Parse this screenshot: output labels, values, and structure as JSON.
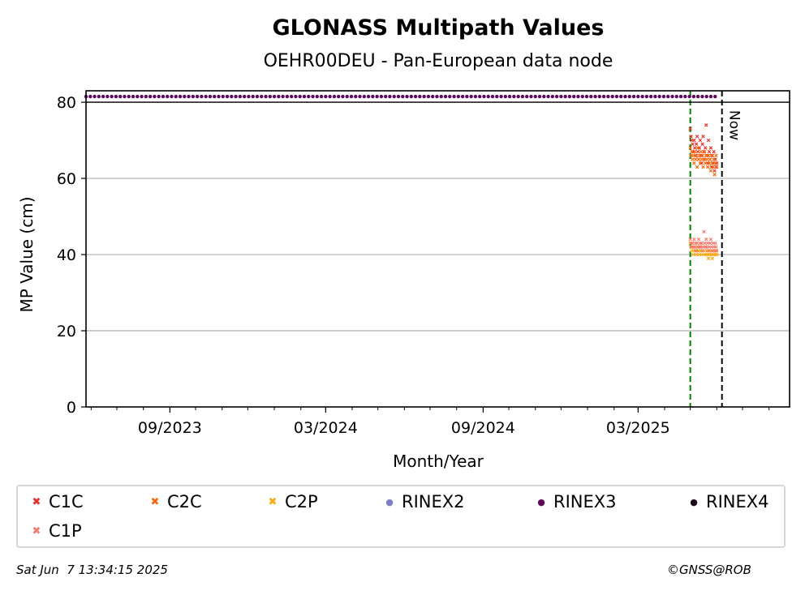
{
  "chart_data": {
    "type": "scatter",
    "title": "GLONASS Multipath Values",
    "subtitle": "OEHR00DEU - Pan-European data node",
    "xlabel": "Month/Year",
    "ylabel": "MP Value (cm)",
    "x_tick_labels": [
      "09/2023",
      "03/2024",
      "09/2024",
      "03/2025"
    ],
    "x_tick_dates": [
      "2023-09-01",
      "2024-03-01",
      "2024-09-01",
      "2025-03-01"
    ],
    "x_range": [
      "2023-05-26",
      "2025-08-25"
    ],
    "ylim": [
      0,
      83
    ],
    "y_ticks": [
      0,
      20,
      40,
      60,
      80
    ],
    "grid": "horizontal",
    "legend_placement": "below",
    "vertical_markers": [
      {
        "date": "2025-05-01",
        "style": "dashed",
        "color": "#008000",
        "label": ""
      },
      {
        "date": "2025-06-07",
        "style": "dashed",
        "color": "#000000",
        "label": "Now"
      }
    ],
    "series": [
      {
        "name": "C1C",
        "color": "#e8302a",
        "marker": "x",
        "x_start": "2025-05-01",
        "x_end": "2025-06-01",
        "values": [
          73,
          71,
          70,
          69,
          67,
          70,
          68,
          66,
          69,
          71,
          67,
          65,
          68,
          70,
          66,
          64,
          69,
          71,
          67,
          65,
          68,
          74,
          66,
          64,
          70,
          67,
          65,
          68,
          63,
          66,
          64,
          67,
          62,
          65,
          63,
          64
        ]
      },
      {
        "name": "C2C",
        "color": "#f46b0c",
        "marker": "x",
        "x_start": "2025-05-01",
        "x_end": "2025-06-01",
        "values": [
          68,
          66,
          67,
          65,
          66,
          64,
          67,
          65,
          66,
          63,
          68,
          65,
          66,
          64,
          67,
          65,
          66,
          63,
          65,
          67,
          64,
          66,
          65,
          63,
          66,
          64,
          65,
          62,
          66,
          64,
          63,
          65,
          61,
          64,
          66,
          63
        ]
      },
      {
        "name": "C2P",
        "color": "#fcaa14",
        "marker": "x",
        "x_start": "2025-05-01",
        "x_end": "2025-06-01",
        "values": [
          43,
          42,
          41,
          42,
          40,
          41,
          42,
          41,
          40,
          42,
          41,
          41,
          40,
          42,
          41,
          40,
          41,
          42,
          40,
          41,
          42,
          40,
          41,
          40,
          39,
          41,
          40,
          41,
          40,
          39,
          41,
          40,
          41,
          40,
          41,
          40
        ]
      },
      {
        "name": "RINEX2",
        "color": "#7f7fbf",
        "marker": "o",
        "values": []
      },
      {
        "name": "RINEX3",
        "color": "#5c0a5c",
        "marker": "o",
        "x_start": "2023-05-26",
        "x_end": "2025-06-01",
        "y": 81.5
      },
      {
        "name": "RINEX4",
        "color": "#1a0a1a",
        "marker": "o",
        "values": []
      },
      {
        "name": "C1P",
        "color": "#f47c72",
        "marker": "x",
        "x_start": "2025-05-01",
        "x_end": "2025-06-01",
        "values": [
          44,
          43,
          42,
          43,
          42,
          44,
          42,
          43,
          41,
          43,
          42,
          44,
          42,
          43,
          42,
          43,
          41,
          42,
          46,
          43,
          42,
          44,
          42,
          43,
          41,
          42,
          43,
          44,
          42,
          41,
          43,
          42,
          41,
          43,
          42,
          41
        ]
      }
    ]
  },
  "legend": [
    {
      "label": "C1C",
      "color": "#e8302a",
      "marker": "x"
    },
    {
      "label": "C2C",
      "color": "#f46b0c",
      "marker": "x"
    },
    {
      "label": "C2P",
      "color": "#fcaa14",
      "marker": "x"
    },
    {
      "label": "RINEX2",
      "color": "#7f7fbf",
      "marker": "o"
    },
    {
      "label": "RINEX3",
      "color": "#5c0a5c",
      "marker": "o"
    },
    {
      "label": "RINEX4",
      "color": "#1a0a1a",
      "marker": "o"
    },
    {
      "label": "C1P",
      "color": "#f47c72",
      "marker": "x"
    }
  ],
  "marker_now_label": "Now",
  "footer": {
    "timestamp": "Sat Jun  7 13:34:15 2025",
    "credit": "©GNSS@ROB"
  }
}
